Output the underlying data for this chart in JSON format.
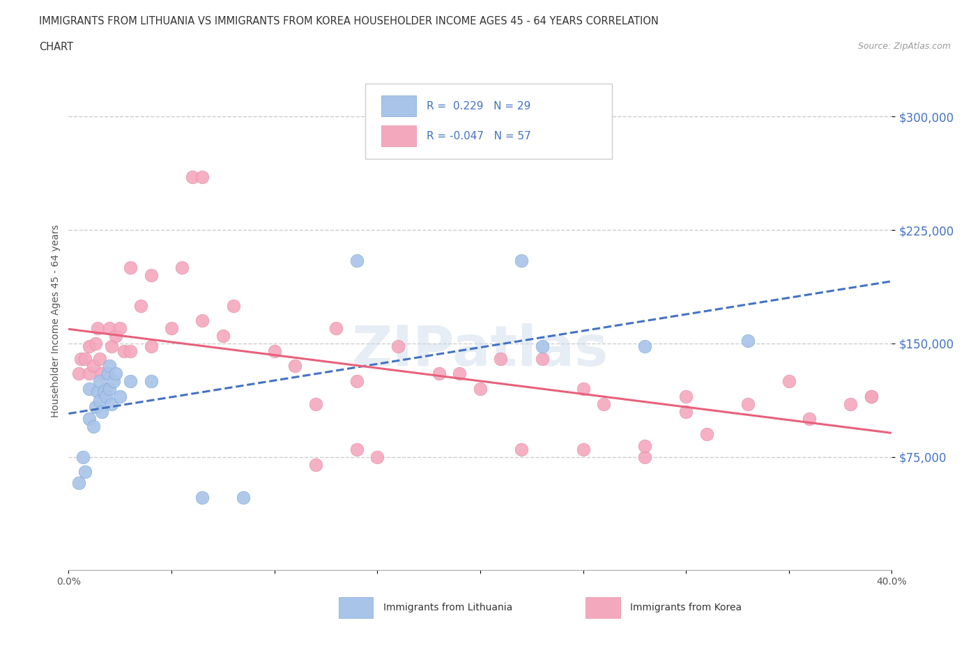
{
  "title_line1": "IMMIGRANTS FROM LITHUANIA VS IMMIGRANTS FROM KOREA HOUSEHOLDER INCOME AGES 45 - 64 YEARS CORRELATION",
  "title_line2": "CHART",
  "source": "Source: ZipAtlas.com",
  "ylabel": "Householder Income Ages 45 - 64 years",
  "xlim": [
    0.0,
    0.4
  ],
  "ylim": [
    0,
    330000
  ],
  "yticks": [
    75000,
    150000,
    225000,
    300000
  ],
  "ytick_labels": [
    "$75,000",
    "$150,000",
    "$225,000",
    "$300,000"
  ],
  "background_color": "#ffffff",
  "grid_color": "#cccccc",
  "color_lithuania": "#a8c4e8",
  "color_korea": "#f4a8be",
  "color_line_lithuania": "#4472c4",
  "color_line_korea": "#e8607a",
  "watermark": "ZIPatlas",
  "lithuania_x": [
    0.005,
    0.007,
    0.008,
    0.01,
    0.01,
    0.012,
    0.013,
    0.014,
    0.015,
    0.015,
    0.016,
    0.017,
    0.018,
    0.019,
    0.02,
    0.02,
    0.021,
    0.022,
    0.023,
    0.025,
    0.03,
    0.04,
    0.065,
    0.085,
    0.14,
    0.22,
    0.23,
    0.28,
    0.33
  ],
  "lithuania_y": [
    58000,
    75000,
    65000,
    100000,
    120000,
    95000,
    108000,
    118000,
    112000,
    125000,
    105000,
    118000,
    115000,
    130000,
    120000,
    135000,
    110000,
    125000,
    130000,
    115000,
    125000,
    125000,
    48000,
    48000,
    205000,
    205000,
    148000,
    148000,
    152000
  ],
  "korea_x": [
    0.005,
    0.006,
    0.008,
    0.01,
    0.01,
    0.012,
    0.013,
    0.014,
    0.015,
    0.016,
    0.018,
    0.02,
    0.021,
    0.023,
    0.025,
    0.027,
    0.03,
    0.03,
    0.035,
    0.04,
    0.04,
    0.05,
    0.055,
    0.06,
    0.065,
    0.065,
    0.075,
    0.08,
    0.1,
    0.11,
    0.12,
    0.13,
    0.14,
    0.15,
    0.16,
    0.18,
    0.2,
    0.21,
    0.22,
    0.25,
    0.26,
    0.28,
    0.3,
    0.31,
    0.33,
    0.35,
    0.36,
    0.38,
    0.39,
    0.14,
    0.19,
    0.23,
    0.25,
    0.28,
    0.12,
    0.3,
    0.39
  ],
  "korea_y": [
    130000,
    140000,
    140000,
    130000,
    148000,
    135000,
    150000,
    160000,
    140000,
    130000,
    120000,
    160000,
    148000,
    155000,
    160000,
    145000,
    145000,
    200000,
    175000,
    195000,
    148000,
    160000,
    200000,
    260000,
    165000,
    260000,
    155000,
    175000,
    145000,
    135000,
    110000,
    160000,
    125000,
    75000,
    148000,
    130000,
    120000,
    140000,
    80000,
    120000,
    110000,
    75000,
    105000,
    90000,
    110000,
    125000,
    100000,
    110000,
    115000,
    80000,
    130000,
    140000,
    80000,
    82000,
    70000,
    115000,
    115000
  ]
}
